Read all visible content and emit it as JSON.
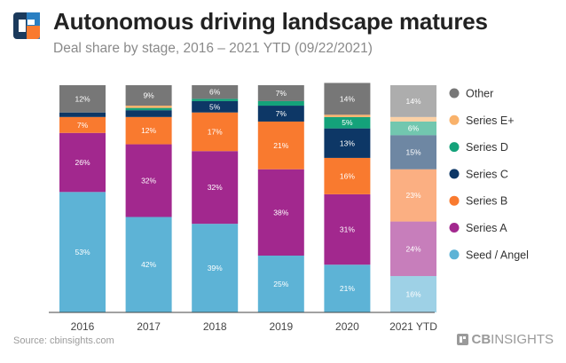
{
  "title": "Autonomous driving landscape matures",
  "subtitle": "Deal share by stage, 2016 – 2021 YTD (09/22/2021)",
  "source": "Source: cbinsights.com",
  "brand": {
    "bold": "CB",
    "light": "INSIGHTS"
  },
  "chart_data": {
    "type": "bar",
    "stacked": true,
    "categories": [
      "2016",
      "2017",
      "2018",
      "2019",
      "2020",
      "2021 YTD"
    ],
    "ylim": [
      0,
      100
    ],
    "legend_position": "right",
    "series": [
      {
        "name": "Seed / Angel",
        "color": "#5db3d6",
        "values": [
          53,
          42,
          39,
          25,
          21,
          16
        ],
        "labels": [
          "53%",
          "42%",
          "39%",
          "25%",
          "21%",
          "16%"
        ]
      },
      {
        "name": "Series A",
        "color": "#a2288e",
        "values": [
          26,
          32,
          32,
          38,
          31,
          24
        ],
        "labels": [
          "26%",
          "32%",
          "32%",
          "38%",
          "31%",
          "24%"
        ]
      },
      {
        "name": "Series B",
        "color": "#f97a2f",
        "values": [
          7,
          12,
          17,
          21,
          16,
          23
        ],
        "labels": [
          "7%",
          "12%",
          "17%",
          "21%",
          "16%",
          "23%"
        ]
      },
      {
        "name": "Series C",
        "color": "#0d3766",
        "values": [
          2,
          3,
          5,
          7,
          13,
          15
        ],
        "labels": [
          "",
          "",
          "5%",
          "7%",
          "13%",
          "15%"
        ]
      },
      {
        "name": "Series D",
        "color": "#14a27a",
        "values": [
          0,
          1,
          1,
          2,
          5,
          6
        ],
        "labels": [
          "",
          "",
          "",
          "",
          "5%",
          "6%"
        ]
      },
      {
        "name": "Series E+",
        "color": "#f9b26b",
        "values": [
          0,
          1,
          0,
          0,
          1,
          2
        ],
        "labels": [
          "",
          "",
          "",
          "",
          "",
          ""
        ]
      },
      {
        "name": "Other",
        "color": "#777777",
        "values": [
          12,
          9,
          6,
          7,
          14,
          14
        ],
        "labels": [
          "12%",
          "9%",
          "6%",
          "7%",
          "14%",
          "14%"
        ]
      }
    ],
    "faded_categories": [
      "2021 YTD"
    ]
  }
}
